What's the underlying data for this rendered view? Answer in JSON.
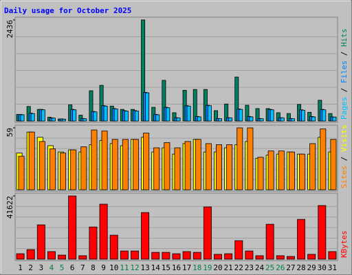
{
  "chart_data": {
    "type": "bar",
    "title": "Daily usage for October 2025",
    "categories": [
      "1",
      "2",
      "3",
      "4",
      "5",
      "6",
      "7",
      "8",
      "9",
      "10",
      "11",
      "12",
      "13",
      "14",
      "15",
      "16",
      "17",
      "18",
      "19",
      "20",
      "21",
      "22",
      "23",
      "24",
      "25",
      "26",
      "27",
      "28",
      "29",
      "30",
      "31"
    ],
    "category_colors": [
      "#000000",
      "#000000",
      "#000000",
      "#008040",
      "#008040",
      "#000000",
      "#000000",
      "#000000",
      "#000000",
      "#000000",
      "#008040",
      "#008040",
      "#000000",
      "#000000",
      "#000000",
      "#000000",
      "#000000",
      "#008040",
      "#008040",
      "#000000",
      "#000000",
      "#000000",
      "#000000",
      "#000000",
      "#008040",
      "#008040",
      "#000000",
      "#000000",
      "#000000",
      "#000000",
      "#000000"
    ],
    "legend_separator": " / ",
    "panels": [
      {
        "ylim": [
          0,
          2436
        ],
        "yticks": [
          2436
        ],
        "series": [
          {
            "name": "Hits",
            "color": "#008060",
            "values": [
              160,
              350,
              280,
              90,
              50,
              390,
              140,
              730,
              860,
              360,
              280,
              280,
              2436,
              330,
              980,
              200,
              740,
              760,
              760,
              250,
              410,
              1060,
              380,
              300,
              300,
              200,
              180,
              400,
              210,
              500,
              180
            ]
          },
          {
            "name": "Files",
            "color": "#0080ff",
            "values": [
              160,
              190,
              280,
              75,
              50,
              280,
              60,
              230,
              370,
              300,
              250,
              250,
              690,
              160,
              330,
              80,
              370,
              110,
              380,
              60,
              80,
              290,
              110,
              60,
              280,
              80,
              60,
              270,
              110,
              280,
              100
            ]
          },
          {
            "name": "Pages",
            "color": "#00c0ff",
            "values": [
              150,
              180,
              270,
              70,
              45,
              270,
              55,
              220,
              360,
              290,
              240,
              240,
              680,
              150,
              320,
              75,
              360,
              100,
              370,
              55,
              75,
              280,
              100,
              55,
              270,
              75,
              55,
              260,
              100,
              270,
              95
            ]
          }
        ]
      },
      {
        "ylim": [
          0,
          59
        ],
        "yticks": [
          59
        ],
        "series": [
          {
            "name": "Visits",
            "color": "#ffff00",
            "values": [
              35,
              55,
              50,
              42,
              36,
              38,
              36,
              43,
              47,
              44,
              42,
              48,
              50,
              36,
              40,
              34,
              44,
              48,
              36,
              36,
              40,
              43,
              46,
              30,
              33,
              34,
              36,
              34,
              34,
              50,
              36
            ]
          },
          {
            "name": "Sites",
            "color": "#ff8000",
            "values": [
              32,
              55,
              46,
              39,
              35,
              38,
              41,
              57,
              56,
              48,
              48,
              48,
              54,
              40,
              45,
              40,
              46,
              48,
              44,
              43,
              43,
              59,
              59,
              31,
              37,
              37,
              36,
              34,
              44,
              58,
              48
            ]
          }
        ]
      },
      {
        "ylim": [
          0,
          41622
        ],
        "yticks": [
          41622
        ],
        "series": [
          {
            "name": "KBytes",
            "color": "#ff0000",
            "values": [
              3600,
              6300,
              22600,
              5000,
              2700,
              41622,
              2300,
              21200,
              36200,
              15800,
              5400,
              5400,
              30700,
              4500,
              4500,
              3600,
              5000,
              4500,
              34400,
              3200,
              3600,
              12200,
              5400,
              2300,
              23000,
              2300,
              1800,
              26200,
              3200,
              35300,
              5000
            ]
          }
        ]
      }
    ]
  }
}
